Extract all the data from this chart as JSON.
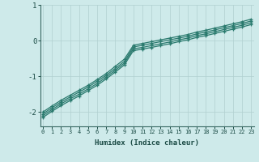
{
  "xlabel": "Humidex (Indice chaleur)",
  "ylabel": "",
  "background_color": "#ceeaea",
  "grid_color": "#b0d0d0",
  "line_color": "#2a7a6e",
  "x_min": 0,
  "x_max": 23,
  "y_min": -2.4,
  "y_max": 0.7,
  "x_ticks": [
    0,
    1,
    2,
    3,
    4,
    5,
    6,
    7,
    8,
    9,
    10,
    11,
    12,
    13,
    14,
    15,
    16,
    17,
    18,
    19,
    20,
    21,
    22,
    23
  ],
  "y_ticks": [
    -2,
    -1,
    0,
    1
  ],
  "lines": [
    [
      -2.05,
      -1.88,
      -1.72,
      -1.58,
      -1.44,
      -1.3,
      -1.14,
      -0.97,
      -0.78,
      -0.58,
      -0.18,
      -0.13,
      -0.08,
      -0.03,
      0.02,
      0.07,
      0.12,
      0.19,
      0.24,
      0.3,
      0.36,
      0.42,
      0.48,
      0.55
    ],
    [
      -2.1,
      -1.93,
      -1.77,
      -1.63,
      -1.5,
      -1.35,
      -1.2,
      -1.02,
      -0.83,
      -0.63,
      -0.23,
      -0.19,
      -0.14,
      -0.09,
      -0.04,
      0.02,
      0.07,
      0.14,
      0.19,
      0.25,
      0.31,
      0.37,
      0.43,
      0.5
    ],
    [
      -2.0,
      -1.83,
      -1.67,
      -1.53,
      -1.39,
      -1.25,
      -1.09,
      -0.92,
      -0.72,
      -0.52,
      -0.13,
      -0.08,
      -0.03,
      0.02,
      0.07,
      0.12,
      0.17,
      0.24,
      0.29,
      0.35,
      0.41,
      0.47,
      0.53,
      0.6
    ],
    [
      -2.15,
      -1.98,
      -1.82,
      -1.68,
      -1.55,
      -1.4,
      -1.25,
      -1.07,
      -0.88,
      -0.68,
      -0.28,
      -0.24,
      -0.19,
      -0.14,
      -0.09,
      -0.03,
      0.02,
      0.09,
      0.14,
      0.2,
      0.26,
      0.32,
      0.38,
      0.45
    ]
  ]
}
